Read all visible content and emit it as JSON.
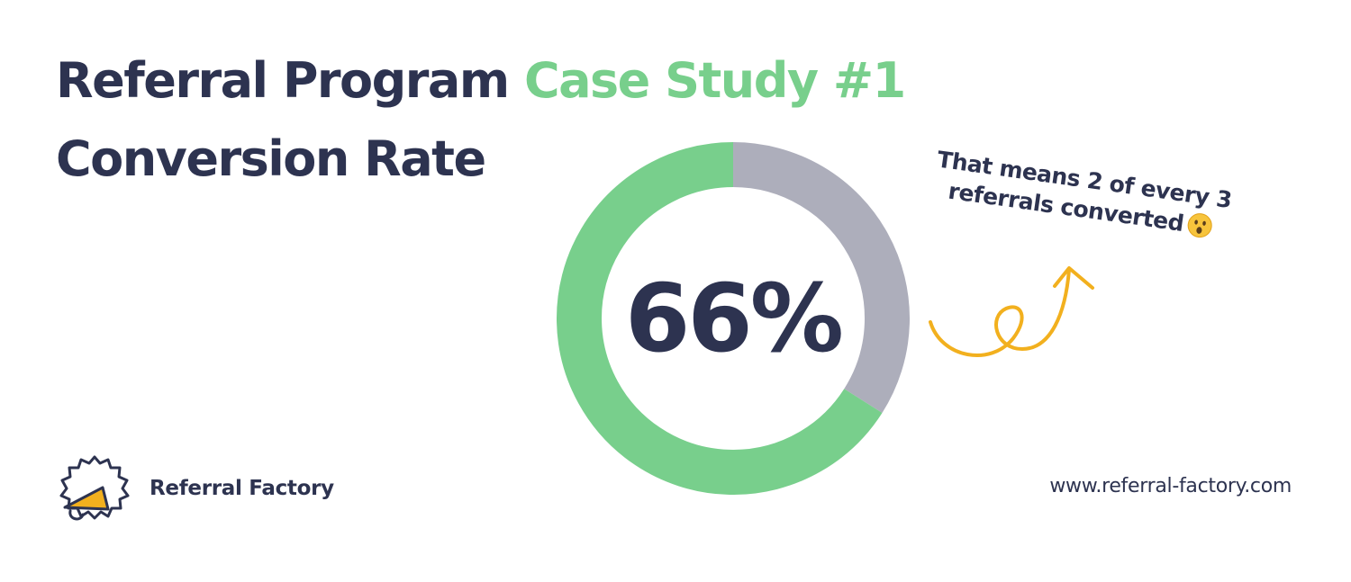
{
  "title": {
    "line1_main": "Referral Program ",
    "line1_accent": "Case Study #1",
    "line2": "Conversion Rate"
  },
  "chart_data": {
    "type": "pie",
    "subtype": "donut",
    "center_label": "66%",
    "slices": [
      {
        "value": 66,
        "color": "#78cf8c"
      },
      {
        "value": 34,
        "color": "#adaebb"
      }
    ]
  },
  "annotation": {
    "line1": "That means 2 of every 3",
    "line2": "referrals converted",
    "emoji": "astonished-face-emoji"
  },
  "arrow_icon": "curly-arrow-icon",
  "arrow_color": "#f2b01e",
  "colors": {
    "text": "#2d3350",
    "accent": "#78cf8c"
  },
  "brand": {
    "logo_icon": "megaphone-badge-icon",
    "name": "Referral Factory"
  },
  "footer": {
    "website": "www.referral-factory.com"
  }
}
